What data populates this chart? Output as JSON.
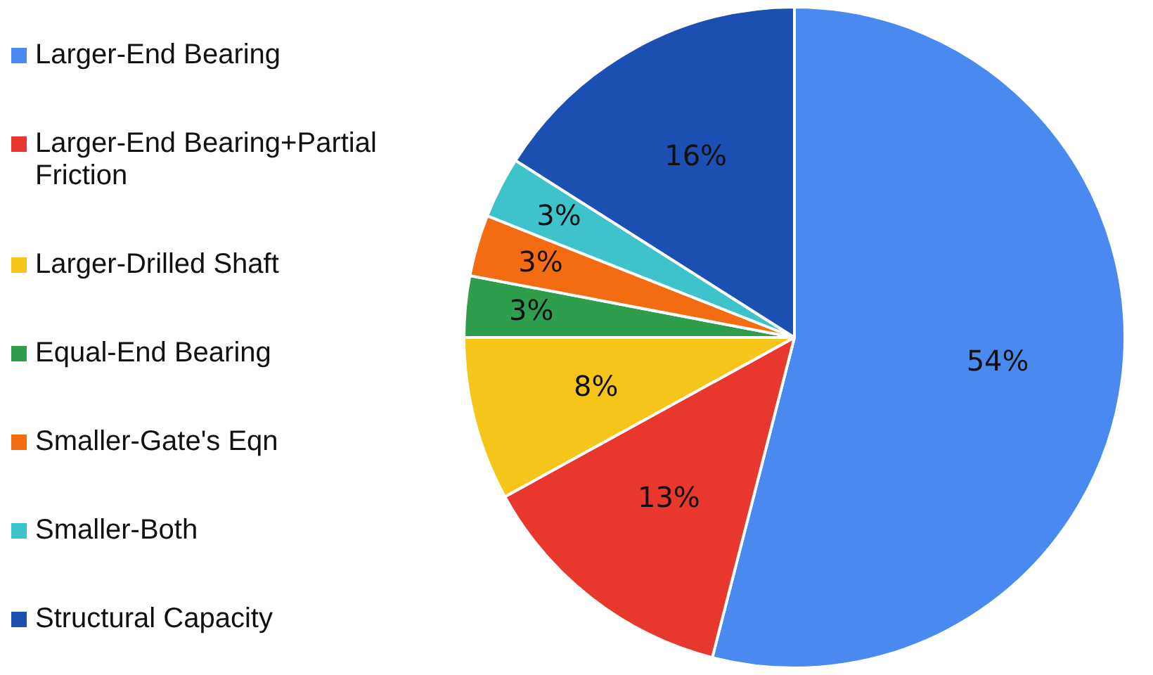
{
  "chart_data": {
    "type": "pie",
    "categories": [
      "Larger-End Bearing",
      "Larger-End Bearing+Partial Friction",
      "Larger-Drilled Shaft",
      "Equal-End Bearing",
      "Smaller-Gate's Eqn",
      "Smaller-Both",
      "Structural Capacity"
    ],
    "values": [
      54,
      13,
      8,
      3,
      3,
      3,
      16
    ],
    "colors": [
      "#4a8af0",
      "#e8372c",
      "#f6c51a",
      "#2f9e4c",
      "#f46c12",
      "#3ec2cc",
      "#1b4fb2"
    ],
    "value_labels": [
      "54%",
      "13%",
      "8%",
      "3%",
      "3%",
      "3%",
      "16%"
    ],
    "legend": "left"
  }
}
